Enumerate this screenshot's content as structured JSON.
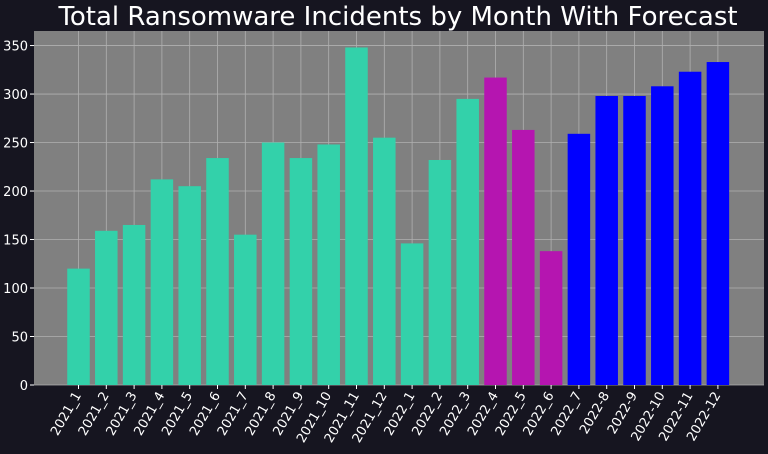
{
  "chart_data": {
    "type": "bar",
    "title": "Total Ransomware Incidents by Month With Forecast",
    "xlabel": "",
    "ylabel": "",
    "ylim": [
      0,
      365
    ],
    "yticks": [
      0,
      50,
      100,
      150,
      200,
      250,
      300,
      350
    ],
    "grid": true,
    "legend": "none",
    "colors": {
      "background": "#161520",
      "plot_area": "#808080",
      "grid": "#b0b0b0",
      "text": "#ffffff",
      "historical": "#33d1aa",
      "partial": "#b515b0",
      "forecast": "#0000ff"
    },
    "categories": [
      "2021_1",
      "2021_2",
      "2021_3",
      "2021_4",
      "2021_5",
      "2021_6",
      "2021_7",
      "2021_8",
      "2021_9",
      "2021_10",
      "2021_11",
      "2021_12",
      "2022_1",
      "2022_2",
      "2022_3",
      "2022_4",
      "2022_5",
      "2022_6",
      "2022_7",
      "2022-8",
      "2022-9",
      "2022-10",
      "2022-11",
      "2022-12"
    ],
    "values": [
      120,
      159,
      165,
      212,
      205,
      234,
      155,
      250,
      234,
      248,
      348,
      255,
      146,
      232,
      295,
      317,
      263,
      138,
      259,
      298,
      298,
      308,
      323,
      333
    ],
    "bar_groups": [
      "historical",
      "historical",
      "historical",
      "historical",
      "historical",
      "historical",
      "historical",
      "historical",
      "historical",
      "historical",
      "historical",
      "historical",
      "historical",
      "historical",
      "historical",
      "partial",
      "partial",
      "partial",
      "forecast",
      "forecast",
      "forecast",
      "forecast",
      "forecast",
      "forecast"
    ]
  }
}
